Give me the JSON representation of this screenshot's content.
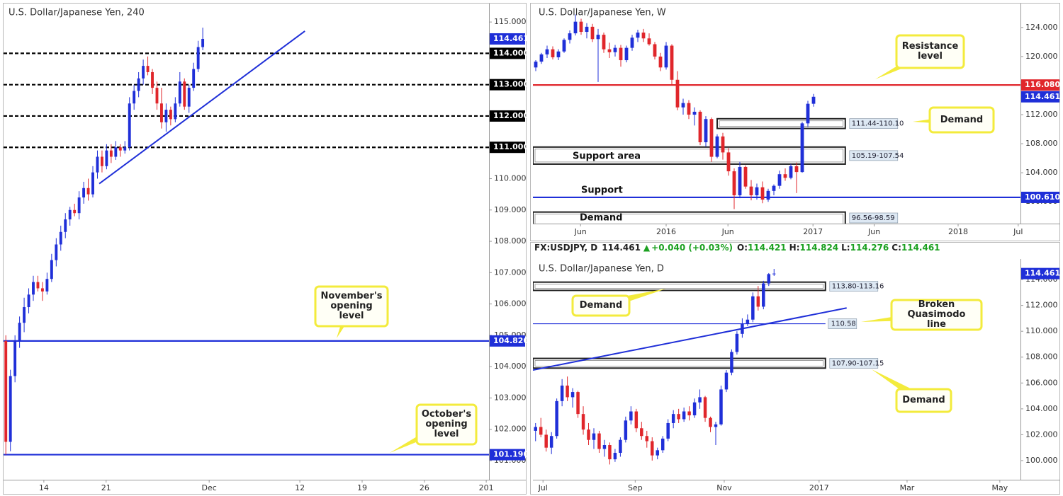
{
  "chart_data": [
    {
      "type": "candlestick",
      "title": "U.S. Dollar/Japanese Yen, 240",
      "xlim": [
        0,
        106
      ],
      "xticks": [
        {
          "value": 8.8,
          "label": "14"
        },
        {
          "value": 22.4,
          "label": "21"
        },
        {
          "value": 44.9,
          "label": "Dec"
        },
        {
          "value": 64.7,
          "label": "12"
        },
        {
          "value": 78.3,
          "label": "19"
        },
        {
          "value": 91.9,
          "label": "26"
        },
        {
          "value": 105.4,
          "label": "201"
        }
      ],
      "ylim": [
        100.39,
        115.59
      ],
      "yticks": [
        {
          "value": 101,
          "label": "101.000"
        },
        {
          "value": 102,
          "label": "102.000"
        },
        {
          "value": 103,
          "label": "103.000"
        },
        {
          "value": 104,
          "label": "104.000"
        },
        {
          "value": 105,
          "label": "105.000"
        },
        {
          "value": 106,
          "label": "106.000"
        },
        {
          "value": 107,
          "label": "107.000"
        },
        {
          "value": 108,
          "label": "108.000"
        },
        {
          "value": 109,
          "label": "109.000"
        },
        {
          "value": 110,
          "label": "110.000"
        },
        {
          "value": 111,
          "label": "111.000"
        },
        {
          "value": 112,
          "label": "112.000"
        },
        {
          "value": 113,
          "label": "113.000"
        },
        {
          "value": 114,
          "label": "114.000"
        },
        {
          "value": 115,
          "label": "115.000"
        }
      ],
      "up_color": "#1f2fd8",
      "down_color": "#e0262b",
      "open": [
        104.82,
        101.6,
        103.7,
        104.8,
        105.4,
        105.9,
        106.3,
        106.7,
        106.5,
        106.4,
        106.8,
        107.4,
        107.9,
        108.3,
        108.7,
        109.0,
        108.9,
        109.4,
        109.7,
        109.5,
        110.2,
        110.7,
        110.4,
        110.9,
        110.7,
        111.0,
        110.9,
        111.0,
        112.4,
        112.8,
        113.2,
        113.6,
        113.4,
        112.9,
        112.4,
        111.8,
        112.2,
        111.9,
        112.4,
        113.1,
        112.3,
        112.9,
        113.5,
        114.2
      ],
      "high": [
        105.0,
        103.9,
        105.0,
        105.6,
        106.2,
        106.5,
        106.9,
        106.9,
        106.7,
        107.0,
        107.6,
        108.1,
        108.5,
        108.9,
        109.1,
        109.2,
        109.6,
        109.9,
        110.0,
        110.4,
        110.9,
        110.9,
        111.1,
        111.1,
        111.2,
        111.1,
        111.2,
        112.6,
        113.0,
        113.4,
        113.8,
        113.9,
        113.5,
        113.1,
        112.9,
        112.4,
        112.3,
        112.6,
        113.4,
        113.2,
        113.0,
        113.7,
        114.4,
        114.82
      ],
      "low": [
        101.19,
        101.3,
        103.5,
        104.6,
        105.1,
        105.7,
        106.1,
        106.4,
        106.1,
        106.3,
        106.7,
        107.2,
        107.7,
        108.1,
        108.5,
        108.8,
        108.7,
        109.2,
        109.3,
        109.4,
        110.0,
        110.2,
        110.3,
        110.5,
        110.6,
        110.7,
        110.8,
        110.9,
        112.2,
        112.6,
        113.0,
        113.3,
        112.7,
        112.2,
        111.6,
        111.5,
        111.7,
        111.8,
        112.3,
        112.2,
        112.1,
        112.8,
        113.4,
        114.1
      ],
      "close": [
        101.6,
        103.7,
        104.8,
        105.4,
        105.9,
        106.3,
        106.7,
        106.5,
        106.4,
        106.8,
        107.4,
        107.9,
        108.3,
        108.7,
        109.0,
        108.9,
        109.4,
        109.7,
        109.5,
        110.2,
        110.7,
        110.4,
        110.9,
        110.7,
        111.0,
        110.9,
        111.0,
        112.4,
        112.8,
        113.2,
        113.6,
        113.4,
        112.9,
        112.4,
        111.8,
        112.2,
        111.9,
        112.4,
        113.1,
        112.3,
        112.9,
        113.5,
        114.2,
        114.461
      ],
      "price": 114.461,
      "price_color": "#1f2fd8",
      "levels": [
        {
          "value": 114,
          "label": "114.000",
          "color": "#000000",
          "style": "dashed"
        },
        {
          "value": 113,
          "label": "113.000",
          "color": "#000000",
          "style": "dashed"
        },
        {
          "value": 112,
          "label": "112.000",
          "color": "#000000",
          "style": "dashed"
        },
        {
          "value": 111,
          "label": "111.000",
          "color": "#000000",
          "style": "dashed"
        },
        {
          "value": 104.82,
          "label": "104.820",
          "color": "#1f2fd8",
          "style": "solid"
        },
        {
          "value": 101.19,
          "label": "101.190",
          "color": "#1f2fd8",
          "style": "solid"
        }
      ],
      "trendlines": [
        {
          "x": [
            20.9,
            65.8
          ],
          "y": [
            109.84,
            114.71
          ],
          "color": "#1f2fd8"
        }
      ],
      "zones": [],
      "labels": [],
      "callouts": [
        "November's opening level",
        "October's opening level"
      ]
    },
    {
      "type": "candlestick",
      "title": "U.S. Dollar/Japanese Yen, W",
      "xlim": [
        0,
        86
      ],
      "xticks": [
        {
          "value": 8.4,
          "label": "Jun"
        },
        {
          "value": 23.5,
          "label": "2016"
        },
        {
          "value": 34.4,
          "label": "Jun"
        },
        {
          "value": 49.4,
          "label": "2017"
        },
        {
          "value": 60.2,
          "label": "Jun"
        },
        {
          "value": 75,
          "label": "2018"
        },
        {
          "value": 85.6,
          "label": "Jul"
        }
      ],
      "ylim": [
        97.0,
        127.3
      ],
      "yticks": [
        {
          "value": 100,
          "label": "100.000"
        },
        {
          "value": 104,
          "label": "104.000"
        },
        {
          "value": 108,
          "label": "108.000"
        },
        {
          "value": 112,
          "label": "112.000"
        },
        {
          "value": 116,
          "label": "116.000"
        },
        {
          "value": 120,
          "label": "120.000"
        },
        {
          "value": 124,
          "label": "124.000"
        }
      ],
      "up_color": "#1f2fd8",
      "down_color": "#e0262b",
      "open": [
        118.5,
        119.3,
        120.3,
        121.0,
        119.9,
        120.7,
        122.3,
        123.2,
        124.8,
        123.4,
        124.1,
        122.4,
        123.0,
        121.0,
        120.6,
        121.2,
        119.5,
        121.2,
        122.6,
        123.3,
        122.5,
        121.7,
        120.0,
        118.5,
        121.5,
        116.8,
        113.0,
        113.6,
        112.0,
        112.4,
        108.2,
        111.4,
        106.2,
        109.0,
        106.8,
        104.2,
        100.9,
        104.8,
        102.1,
        100.9,
        102.0,
        100.3,
        101.5,
        102.2,
        103.8,
        103.3,
        104.9,
        104.1,
        110.8,
        113.5
      ],
      "high": [
        119.5,
        120.5,
        121.5,
        121.4,
        121.0,
        122.5,
        123.6,
        125.8,
        125.2,
        124.6,
        124.5,
        123.8,
        123.3,
        121.9,
        121.6,
        121.6,
        121.5,
        123.0,
        123.7,
        123.8,
        123.2,
        122.0,
        120.5,
        122.0,
        121.7,
        118.0,
        114.2,
        114.0,
        113.0,
        112.6,
        111.8,
        111.6,
        109.3,
        109.5,
        107.4,
        104.6,
        105.5,
        105.0,
        103.0,
        102.5,
        102.8,
        101.8,
        102.4,
        104.3,
        104.6,
        105.2,
        105.4,
        111.0,
        113.9,
        114.85
      ],
      "low": [
        118.0,
        119.0,
        119.8,
        119.6,
        119.5,
        120.5,
        121.8,
        122.9,
        123.0,
        122.5,
        122.0,
        116.5,
        120.5,
        119.8,
        120.0,
        118.6,
        119.2,
        120.8,
        122.0,
        122.0,
        121.5,
        119.6,
        118.0,
        118.2,
        116.0,
        112.6,
        112.0,
        111.4,
        110.5,
        107.8,
        107.6,
        105.5,
        106.0,
        105.8,
        103.6,
        99.0,
        100.5,
        101.8,
        100.2,
        100.3,
        99.8,
        100.0,
        100.9,
        101.8,
        102.9,
        103.1,
        101.2,
        104.0,
        110.3,
        113.1
      ],
      "close": [
        119.3,
        120.3,
        121.0,
        119.9,
        120.7,
        122.3,
        123.2,
        124.8,
        123.4,
        124.1,
        122.4,
        123.0,
        121.0,
        120.6,
        121.2,
        119.5,
        121.2,
        122.6,
        123.3,
        122.5,
        121.7,
        120.0,
        118.5,
        121.5,
        116.8,
        113.0,
        113.6,
        112.0,
        112.4,
        108.2,
        111.4,
        106.2,
        109.0,
        106.8,
        104.2,
        100.9,
        104.8,
        102.1,
        100.9,
        102.0,
        100.3,
        101.5,
        102.2,
        103.8,
        103.3,
        104.9,
        104.1,
        110.8,
        113.5,
        114.461
      ],
      "price": 114.461,
      "price_color": "#1f2fd8",
      "levels": [
        {
          "value": 116.08,
          "label": "116.080",
          "color": "#e0262b",
          "style": "solid"
        },
        {
          "value": 100.61,
          "label": "100.610",
          "color": "#1f2fd8",
          "style": "solid"
        }
      ],
      "trendlines": [],
      "zones": [
        {
          "low": 110.1,
          "high": 111.44,
          "label": "111.44-110.10",
          "x0": 32.5,
          "x1": 55.1
        },
        {
          "low": 105.19,
          "high": 107.54,
          "label": "105.19-107.54",
          "x0": 0,
          "x1": 55.1
        },
        {
          "low": 96.56,
          "high": 98.59,
          "label": "96.56-98.59",
          "x0": 0,
          "x1": 55.1
        }
      ],
      "labels": [
        "Support area",
        "Support",
        "Demand"
      ],
      "callouts": [
        "Resistance level",
        "Demand"
      ]
    },
    {
      "type": "candlestick",
      "title": "U.S. Dollar/Japanese Yen, D",
      "xlim": [
        0,
        92
      ],
      "xticks": [
        {
          "value": 1.9,
          "label": "Jul"
        },
        {
          "value": 19.3,
          "label": "Sep"
        },
        {
          "value": 36.1,
          "label": "Nov"
        },
        {
          "value": 54,
          "label": "2017"
        },
        {
          "value": 70.6,
          "label": "Mar"
        },
        {
          "value": 88.1,
          "label": "May"
        }
      ],
      "ylim": [
        98.52,
        115.59
      ],
      "yticks": [
        {
          "value": 100,
          "label": "100.000"
        },
        {
          "value": 102,
          "label": "102.000"
        },
        {
          "value": 104,
          "label": "104.000"
        },
        {
          "value": 106,
          "label": "106.000"
        },
        {
          "value": 108,
          "label": "108.000"
        },
        {
          "value": 110,
          "label": "110.000"
        },
        {
          "value": 112,
          "label": "112.000"
        },
        {
          "value": 114,
          "label": "114.000"
        }
      ],
      "up_color": "#1f2fd8",
      "down_color": "#e0262b",
      "open": [
        102.3,
        102.6,
        102.0,
        101.0,
        101.9,
        104.6,
        105.8,
        104.9,
        105.3,
        103.6,
        102.4,
        101.6,
        102.1,
        100.9,
        101.2,
        100.1,
        100.6,
        101.6,
        103.1,
        103.8,
        102.5,
        101.9,
        101.5,
        100.4,
        100.8,
        101.7,
        102.9,
        103.6,
        103.2,
        103.8,
        103.5,
        104.5,
        104.9,
        103.3,
        102.6,
        102.8,
        105.5,
        106.8,
        108.4,
        109.8,
        110.6,
        110.9,
        112.7,
        111.9,
        113.7,
        114.421
      ],
      "high": [
        102.9,
        103.3,
        102.4,
        102.2,
        104.8,
        106.3,
        106.5,
        105.6,
        105.4,
        104.2,
        102.9,
        102.5,
        102.3,
        101.6,
        101.4,
        100.9,
        101.8,
        103.4,
        104.2,
        104.0,
        103.0,
        102.3,
        101.8,
        101.0,
        101.9,
        103.2,
        103.9,
        104.0,
        104.1,
        104.2,
        104.8,
        105.5,
        105.0,
        103.4,
        103.0,
        105.8,
        107.0,
        108.6,
        110.0,
        111.0,
        111.3,
        113.0,
        113.5,
        113.9,
        114.5,
        114.824
      ],
      "low": [
        101.5,
        101.8,
        100.7,
        100.5,
        101.7,
        104.2,
        104.6,
        104.1,
        103.3,
        102.0,
        101.2,
        100.9,
        100.6,
        100.3,
        99.7,
        99.9,
        100.3,
        101.4,
        102.8,
        102.2,
        101.6,
        101.0,
        100.0,
        100.1,
        100.6,
        101.5,
        102.5,
        102.9,
        103.0,
        103.1,
        103.3,
        104.0,
        103.0,
        102.2,
        101.2,
        102.7,
        105.3,
        106.6,
        108.2,
        109.5,
        110.4,
        110.7,
        111.6,
        111.7,
        113.5,
        114.276
      ],
      "close": [
        102.6,
        102.0,
        101.0,
        101.9,
        104.6,
        105.8,
        104.9,
        105.3,
        103.6,
        102.4,
        101.6,
        102.1,
        100.9,
        101.2,
        100.1,
        100.6,
        101.6,
        103.1,
        103.8,
        102.5,
        101.9,
        101.5,
        100.4,
        100.8,
        101.7,
        102.9,
        103.6,
        103.2,
        103.8,
        103.5,
        104.5,
        104.9,
        103.3,
        102.6,
        102.8,
        105.5,
        106.8,
        108.4,
        109.8,
        110.6,
        110.9,
        112.7,
        111.9,
        113.7,
        114.421,
        114.461
      ],
      "price": 114.461,
      "price_color": "#1f2fd8",
      "levels": [
        {
          "value": 110.58,
          "color": "#1f2fd8",
          "style": "thin",
          "x1": 55.2
        }
      ],
      "trendlines": [
        {
          "x": [
            0,
            59.2
          ],
          "y": [
            107.0,
            111.8
          ],
          "color": "#1f2fd8"
        }
      ],
      "zones": [
        {
          "low": 113.16,
          "high": 113.8,
          "label": "113.80-113.16",
          "x0": 0,
          "x1": 55.2
        },
        {
          "low": 107.15,
          "high": 107.9,
          "label": "107.90-107.15",
          "x0": 0,
          "x1": 55.2
        }
      ],
      "labels": [],
      "callouts": [
        "Demand",
        "Broken Quasimodo line",
        "Demand"
      ]
    }
  ],
  "ticker": {
    "symbol": "FX:USDJPY, D",
    "price": "114.461",
    "arrow": "▲",
    "change": "+0.040 (+0.03%)",
    "ohlc": [
      {
        "key": "O:",
        "value": "114.421"
      },
      {
        "key": "H:",
        "value": "114.824"
      },
      {
        "key": "L:",
        "value": "114.276"
      },
      {
        "key": "C:",
        "value": "114.461"
      }
    ]
  }
}
